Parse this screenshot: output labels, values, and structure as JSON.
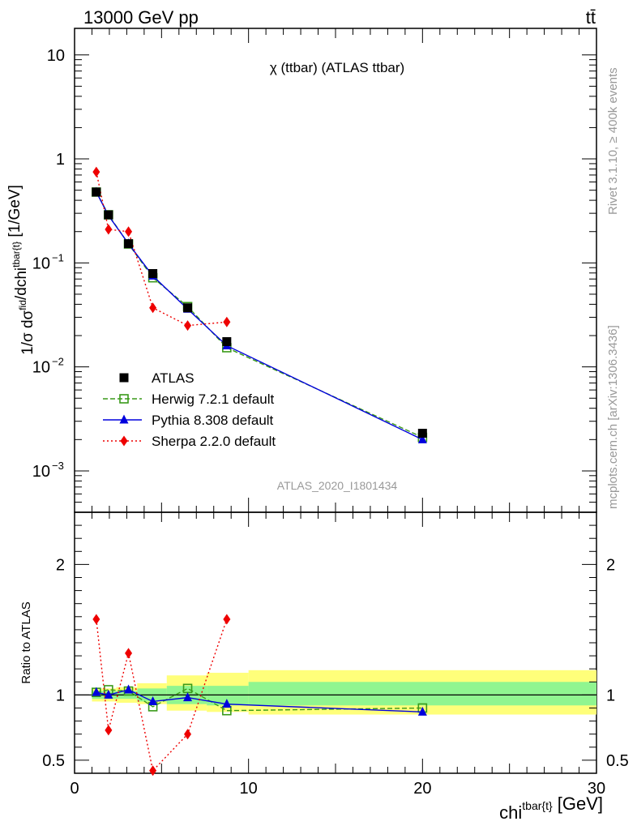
{
  "header": {
    "left": "13000 GeV pp",
    "right": "tt̄"
  },
  "main_title": "χ (ttbar) (ATLAS ttbar)",
  "watermark": "ATLAS_2020_I1801434",
  "side_text": {
    "rivet": "Rivet 3.1.10, ≥ 400k events",
    "mcplots": "mcplots.cern.ch [arXiv:1306.3436]"
  },
  "ylabel_main": "1/σ dσ^fid/dchi^tbar{t} [1/GeV]",
  "ylabel_ratio": "Ratio to ATLAS",
  "xlabel": "chi^tbar{t} [GeV]",
  "colors": {
    "data": "#000000",
    "herwig": "#3a9a1a",
    "pythia": "#0000dd",
    "sherpa": "#ee0000",
    "band_outer": "#ffff7a",
    "band_inner": "#90f590"
  },
  "chart_data": [
    {
      "type": "scatter",
      "panel": "main",
      "yscale": "log",
      "xlim": [
        0,
        30
      ],
      "ylim": [
        0.0004,
        18
      ],
      "y_ticks": [
        {
          "v": 10,
          "label": "10"
        },
        {
          "v": 1,
          "label": "1"
        },
        {
          "v": 0.1,
          "label": "10^-1"
        },
        {
          "v": 0.01,
          "label": "10^-2"
        },
        {
          "v": 0.001,
          "label": "10^-3"
        }
      ],
      "x": [
        1.25,
        1.95,
        3.1,
        4.5,
        6.5,
        8.75,
        20
      ],
      "series": [
        {
          "name": "ATLAS",
          "values": [
            0.48,
            0.29,
            0.153,
            0.079,
            0.037,
            0.0175,
            0.0023
          ]
        },
        {
          "name": "Herwig 7.2.1 default",
          "values": [
            0.48,
            0.29,
            0.152,
            0.072,
            0.038,
            0.0153,
            0.0021
          ]
        },
        {
          "name": "Pythia 8.308 default",
          "values": [
            0.48,
            0.285,
            0.153,
            0.075,
            0.036,
            0.016,
            0.002
          ]
        },
        {
          "name": "Sherpa 2.2.0 default",
          "values": [
            0.75,
            0.21,
            0.2,
            0.037,
            0.025,
            0.027,
            null
          ]
        }
      ]
    },
    {
      "type": "scatter",
      "panel": "ratio",
      "ylim": [
        0.4,
        2.4
      ],
      "y_ticks": [
        {
          "v": 0.5,
          "label": "0.5"
        },
        {
          "v": 1,
          "label": "1"
        },
        {
          "v": 2,
          "label": "2"
        }
      ],
      "x_ticks": [
        0,
        10,
        20,
        30
      ],
      "xlim": [
        0,
        30
      ],
      "x": [
        1.25,
        1.95,
        3.1,
        4.5,
        6.5,
        8.75,
        20
      ],
      "series": [
        {
          "name": "Herwig 7.2.1 default",
          "values": [
            1.02,
            1.04,
            1.03,
            0.91,
            1.05,
            0.88,
            0.9
          ]
        },
        {
          "name": "Pythia 8.308 default",
          "values": [
            1.02,
            1.0,
            1.04,
            0.95,
            0.98,
            0.93,
            0.87
          ]
        },
        {
          "name": "Sherpa 2.2.0 default",
          "values": [
            1.58,
            0.73,
            1.32,
            0.42,
            0.7,
            1.58,
            null
          ]
        }
      ],
      "bands": {
        "edges": [
          1.0,
          1.5,
          2.4,
          3.6,
          5.3,
          7.6,
          10.0,
          30.0
        ],
        "inner": [
          [
            0.97,
            1.03
          ],
          [
            0.97,
            1.03
          ],
          [
            0.97,
            1.03
          ],
          [
            0.95,
            1.05
          ],
          [
            0.93,
            1.07
          ],
          [
            0.92,
            1.07
          ],
          [
            0.92,
            1.1
          ]
        ],
        "outer": [
          [
            0.95,
            1.05
          ],
          [
            0.95,
            1.05
          ],
          [
            0.94,
            1.06
          ],
          [
            0.93,
            1.09
          ],
          [
            0.88,
            1.15
          ],
          [
            0.87,
            1.17
          ],
          [
            0.85,
            1.19
          ]
        ]
      }
    }
  ]
}
